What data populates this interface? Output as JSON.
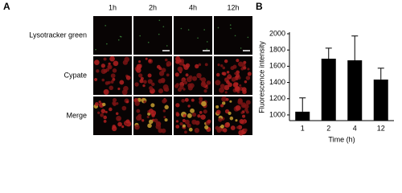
{
  "panel_a": {
    "label": "A",
    "columns": [
      "1h",
      "2h",
      "4h",
      "12h"
    ],
    "rows": [
      "Lysotracker green",
      "Cypate",
      "Merge"
    ]
  },
  "chart_data": {
    "type": "bar",
    "panel_label": "B",
    "categories": [
      "1",
      "2",
      "4",
      "12"
    ],
    "values": [
      1040,
      1693,
      1673,
      1436
    ],
    "errors": [
      170,
      130,
      300,
      140
    ],
    "color": "#000000",
    "ylim": [
      930,
      2000
    ],
    "yticks": [
      1000,
      1200,
      1400,
      1600,
      1800,
      2000
    ],
    "ylabel": "Fluorescence intensity",
    "xlabel": "Time (h)"
  }
}
